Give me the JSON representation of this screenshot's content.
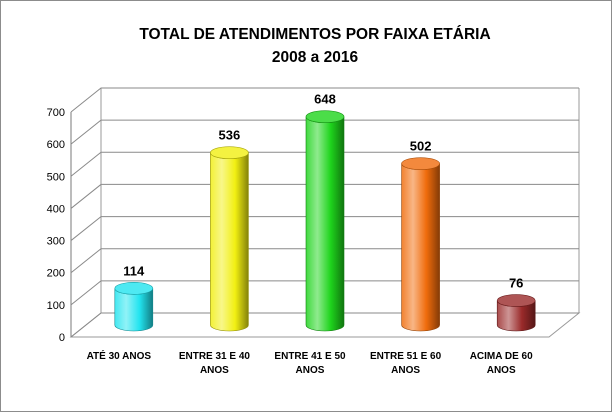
{
  "chart_data": {
    "type": "bar",
    "title_lines": [
      "TOTAL DE ATENDIMENTOS POR FAIXA ETÁRIA",
      "2008 a 2016"
    ],
    "categories": [
      [
        "ATÉ 30 ANOS"
      ],
      [
        "ENTRE 31 E 40",
        "ANOS"
      ],
      [
        "ENTRE 41 E 50",
        "ANOS"
      ],
      [
        "ENTRE 51 E 60",
        "ANOS"
      ],
      [
        "ACIMA DE 60",
        "ANOS"
      ]
    ],
    "values": [
      114,
      536,
      648,
      502,
      76
    ],
    "data_labels": [
      "114",
      "536",
      "648",
      "502",
      "76"
    ],
    "colors": [
      "#22e4ef",
      "#f1ef12",
      "#1ed41c",
      "#f06c0c",
      "#9a2a2a"
    ],
    "ylim": [
      0,
      700
    ],
    "yticks": [
      "0",
      "100",
      "200",
      "300",
      "400",
      "500",
      "600",
      "700"
    ],
    "grid": true,
    "legend": "none"
  }
}
